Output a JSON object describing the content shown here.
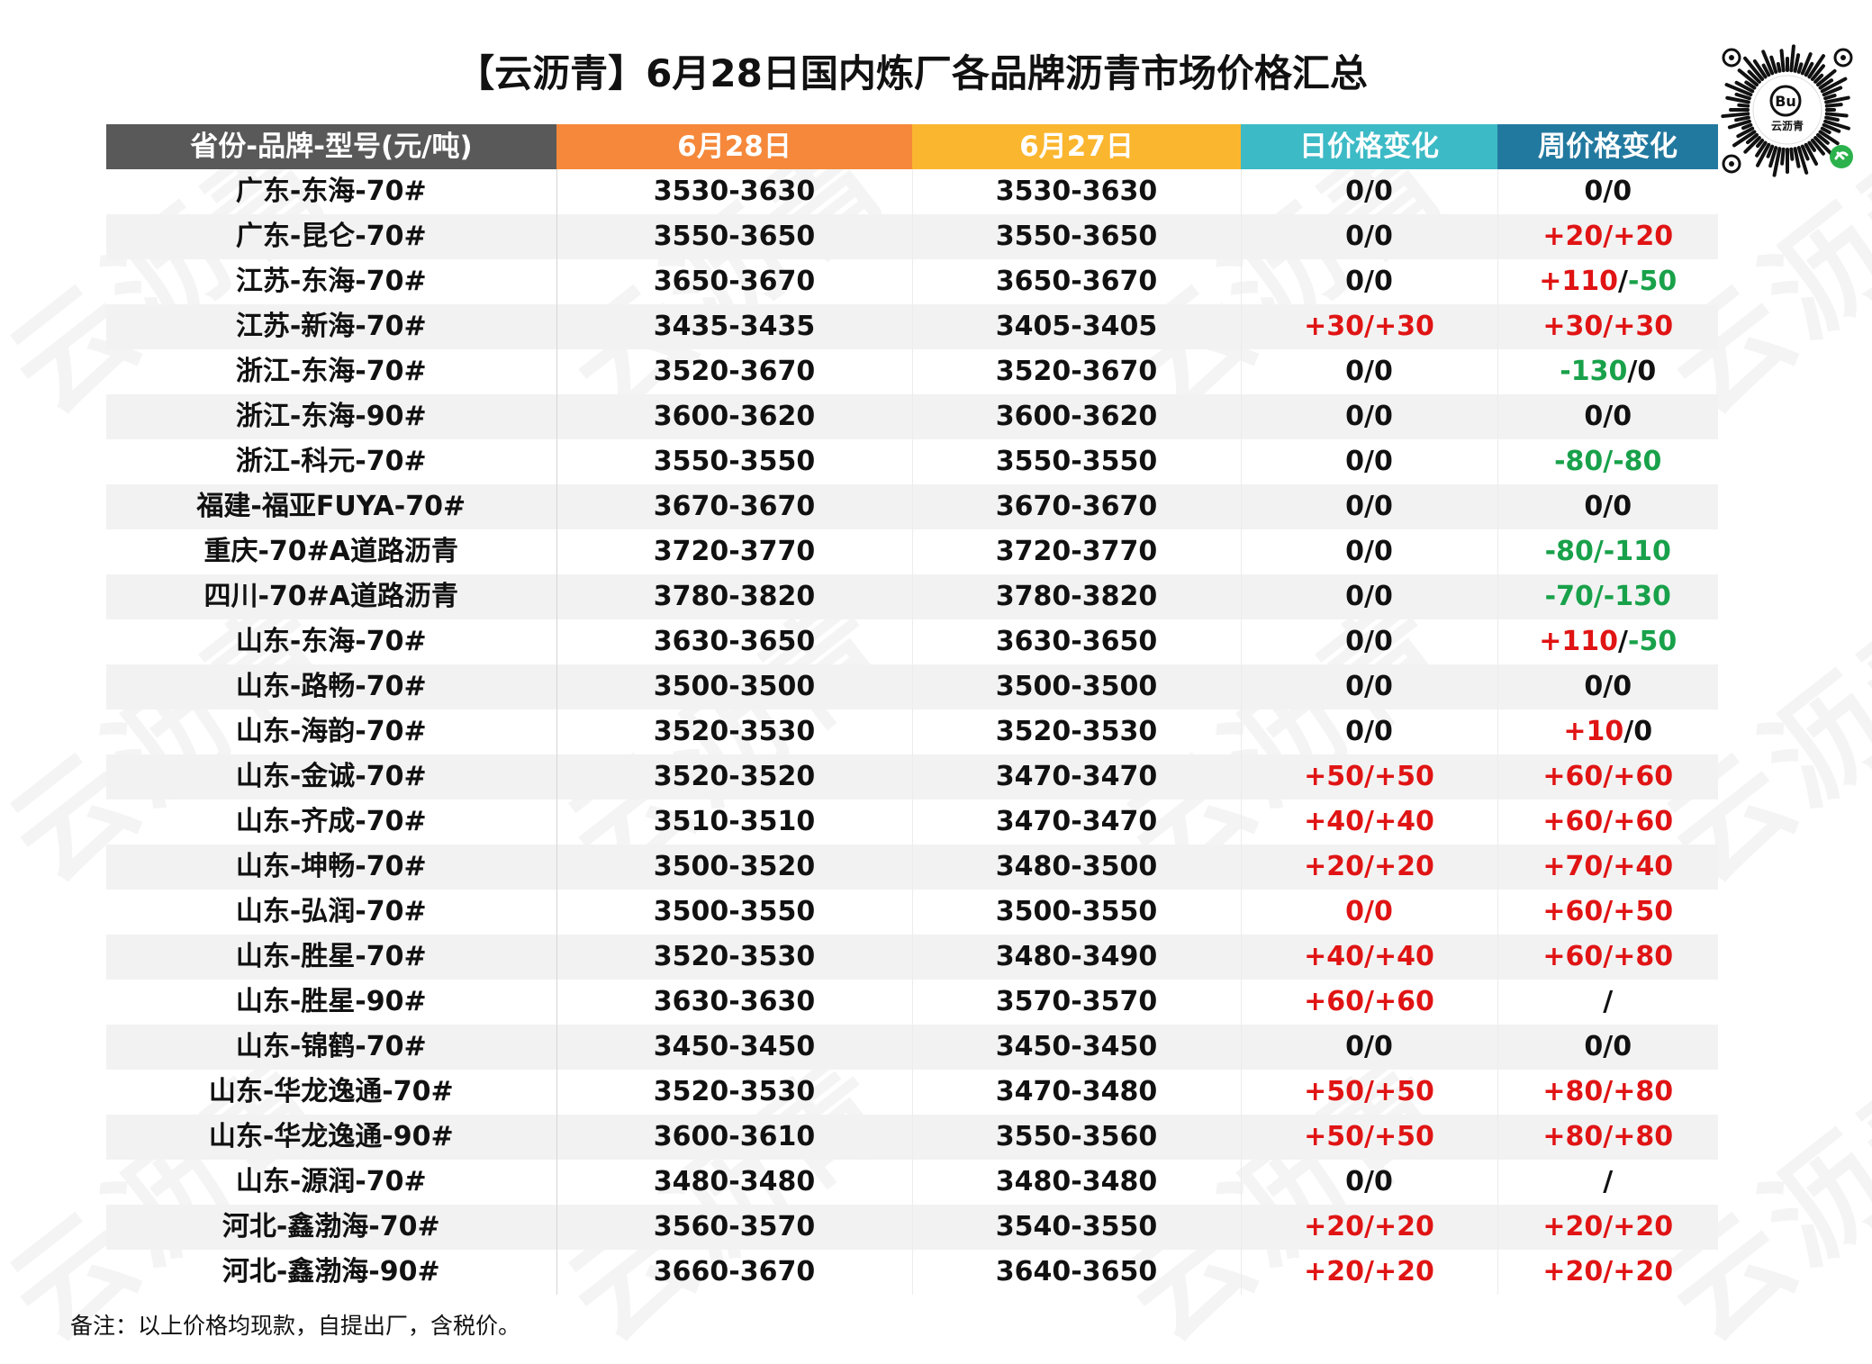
{
  "title": "【云沥青】6月28日国内炼厂各品牌沥青市场价格汇总",
  "watermark_text": "云沥青",
  "qr_label": "云沥青",
  "colors": {
    "red": "#e01414",
    "green": "#18a14a",
    "header_gray": "#595959",
    "header_orange": "#f5883a",
    "header_yellow": "#fbb62f",
    "header_teal": "#3cbac6",
    "header_blue": "#22799f"
  },
  "headers": [
    "省份-品牌-型号(元/吨)",
    "6月28日",
    "6月27日",
    "日价格变化",
    "周价格变化"
  ],
  "rows": [
    {
      "name": "广东-东海-70#",
      "d28": "3530-3630",
      "d28c": "blk",
      "d27": "3530-3630",
      "d27c": "blk",
      "day": [
        [
          "0/0",
          "blk"
        ]
      ],
      "week": [
        [
          "0/0",
          "blk"
        ]
      ]
    },
    {
      "name": "广东-昆仑-70#",
      "d28": "3550-3650",
      "d28c": "blk",
      "d27": "3550-3650",
      "d27c": "blk",
      "day": [
        [
          "0/0",
          "blk"
        ]
      ],
      "week": [
        [
          "+20/+20",
          "red"
        ]
      ]
    },
    {
      "name": "江苏-东海-70#",
      "d28": "3650-3670",
      "d28c": "blk",
      "d27": "3650-3670",
      "d27c": "blk",
      "day": [
        [
          "0/0",
          "blk"
        ]
      ],
      "week": [
        [
          "+110",
          "red"
        ],
        [
          "/",
          "blk"
        ],
        [
          "-50",
          "green"
        ]
      ]
    },
    {
      "name": "江苏-新海-70#",
      "d28": "3435-3435",
      "d28c": "red",
      "d27": "3405-3405",
      "d27c": "blk",
      "day": [
        [
          "+30/+30",
          "red"
        ]
      ],
      "week": [
        [
          "+30/+30",
          "red"
        ]
      ]
    },
    {
      "name": "浙江-东海-70#",
      "d28": "3520-3670",
      "d28c": "blk",
      "d27": "3520-3670",
      "d27c": "blk",
      "day": [
        [
          "0/0",
          "blk"
        ]
      ],
      "week": [
        [
          "-130",
          "green"
        ],
        [
          "/0",
          "blk"
        ]
      ]
    },
    {
      "name": "浙江-东海-90#",
      "d28": "3600-3620",
      "d28c": "blk",
      "d27": "3600-3620",
      "d27c": "blk",
      "day": [
        [
          "0/0",
          "blk"
        ]
      ],
      "week": [
        [
          "0/0",
          "blk"
        ]
      ]
    },
    {
      "name": "浙江-科元-70#",
      "d28": "3550-3550",
      "d28c": "blk",
      "d27": "3550-3550",
      "d27c": "blk",
      "day": [
        [
          "0/0",
          "blk"
        ]
      ],
      "week": [
        [
          "-80/-80",
          "green"
        ]
      ]
    },
    {
      "name": "福建-福亚FUYA-70#",
      "d28": "3670-3670",
      "d28c": "blk",
      "d27": "3670-3670",
      "d27c": "blk",
      "day": [
        [
          "0/0",
          "blk"
        ]
      ],
      "week": [
        [
          "0/0",
          "blk"
        ]
      ]
    },
    {
      "name": "重庆-70#A道路沥青",
      "d28": "3720-3770",
      "d28c": "blk",
      "d27": "3720-3770",
      "d27c": "blk",
      "day": [
        [
          "0/0",
          "blk"
        ]
      ],
      "week": [
        [
          "-80/-110",
          "green"
        ]
      ]
    },
    {
      "name": "四川-70#A道路沥青",
      "d28": "3780-3820",
      "d28c": "blk",
      "d27": "3780-3820",
      "d27c": "blk",
      "day": [
        [
          "0/0",
          "blk"
        ]
      ],
      "week": [
        [
          "-70/-130",
          "green"
        ]
      ]
    },
    {
      "name": "山东-东海-70#",
      "d28": "3630-3650",
      "d28c": "blk",
      "d27": "3630-3650",
      "d27c": "blk",
      "day": [
        [
          "0/0",
          "blk"
        ]
      ],
      "week": [
        [
          "+110",
          "red"
        ],
        [
          "/",
          "blk"
        ],
        [
          "-50",
          "green"
        ]
      ]
    },
    {
      "name": "山东-路畅-70#",
      "d28": "3500-3500",
      "d28c": "blk",
      "d27": "3500-3500",
      "d27c": "blk",
      "day": [
        [
          "0/0",
          "blk"
        ]
      ],
      "week": [
        [
          "0/0",
          "blk"
        ]
      ]
    },
    {
      "name": "山东-海韵-70#",
      "d28": "3520-3530",
      "d28c": "blk",
      "d27": "3520-3530",
      "d27c": "red",
      "day": [
        [
          "0/0",
          "blk"
        ]
      ],
      "week": [
        [
          "+10",
          "red"
        ],
        [
          "/0",
          "blk"
        ]
      ]
    },
    {
      "name": "山东-金诚-70#",
      "d28": "3520-3520",
      "d28c": "red",
      "d27": "3470-3470",
      "d27c": "red",
      "day": [
        [
          "+50/+50",
          "red"
        ]
      ],
      "week": [
        [
          "+60/+60",
          "red"
        ]
      ]
    },
    {
      "name": "山东-齐成-70#",
      "d28": "3510-3510",
      "d28c": "red",
      "d27": "3470-3470",
      "d27c": "red",
      "day": [
        [
          "+40/+40",
          "red"
        ]
      ],
      "week": [
        [
          "+60/+60",
          "red"
        ]
      ]
    },
    {
      "name": "山东-坤畅-70#",
      "d28": "3500-3520",
      "d28c": "red",
      "d27": "3480-3500",
      "d27c": "red",
      "day": [
        [
          "+20/+20",
          "red"
        ]
      ],
      "week": [
        [
          "+70/+40",
          "red"
        ]
      ]
    },
    {
      "name": "山东-弘润-70#",
      "d28": "3500-3550",
      "d28c": "blk",
      "d27": "3500-3550",
      "d27c": "red",
      "day": [
        [
          "0/0",
          "red"
        ]
      ],
      "week": [
        [
          "+60/+50",
          "red"
        ]
      ]
    },
    {
      "name": "山东-胜星-70#",
      "d28": "3520-3530",
      "d28c": "red",
      "d27": "3480-3490",
      "d27c": "red",
      "day": [
        [
          "+40/+40",
          "red"
        ]
      ],
      "week": [
        [
          "+60/+80",
          "red"
        ]
      ]
    },
    {
      "name": "山东-胜星-90#",
      "d28": "3630-3630",
      "d28c": "red",
      "d27": "3570-3570",
      "d27c": "red",
      "day": [
        [
          "+60/+60",
          "red"
        ]
      ],
      "week": [
        [
          "/",
          "blk"
        ]
      ]
    },
    {
      "name": "山东-锦鹤-70#",
      "d28": "3450-3450",
      "d28c": "blk",
      "d27": "3450-3450",
      "d27c": "blk",
      "day": [
        [
          "0/0",
          "blk"
        ]
      ],
      "week": [
        [
          "0/0",
          "blk"
        ]
      ]
    },
    {
      "name": "山东-华龙逸通-70#",
      "d28": "3520-3530",
      "d28c": "red",
      "d27": "3470-3480",
      "d27c": "red",
      "day": [
        [
          "+50/+50",
          "red"
        ]
      ],
      "week": [
        [
          "+80/+80",
          "red"
        ]
      ]
    },
    {
      "name": "山东-华龙逸通-90#",
      "d28": "3600-3610",
      "d28c": "red",
      "d27": "3550-3560",
      "d27c": "red",
      "day": [
        [
          "+50/+50",
          "red"
        ]
      ],
      "week": [
        [
          "+80/+80",
          "red"
        ]
      ]
    },
    {
      "name": "山东-源润-70#",
      "d28": "3480-3480",
      "d28c": "blk",
      "d27": "3480-3480",
      "d27c": "blk",
      "day": [
        [
          "0/0",
          "blk"
        ]
      ],
      "week": [
        [
          "/",
          "blk"
        ]
      ]
    },
    {
      "name": "河北-鑫渤海-70#",
      "d28": "3560-3570",
      "d28c": "red",
      "d27": "3540-3550",
      "d27c": "blk",
      "day": [
        [
          "+20/+20",
          "red"
        ]
      ],
      "week": [
        [
          "+20/+20",
          "red"
        ]
      ]
    },
    {
      "name": "河北-鑫渤海-90#",
      "d28": "3660-3670",
      "d28c": "red",
      "d27": "3640-3650",
      "d27c": "blk",
      "day": [
        [
          "+20/+20",
          "red"
        ]
      ],
      "week": [
        [
          "+20/+20",
          "red"
        ]
      ]
    }
  ],
  "note": "备注：以上价格均现款，自提出厂，含税价。"
}
